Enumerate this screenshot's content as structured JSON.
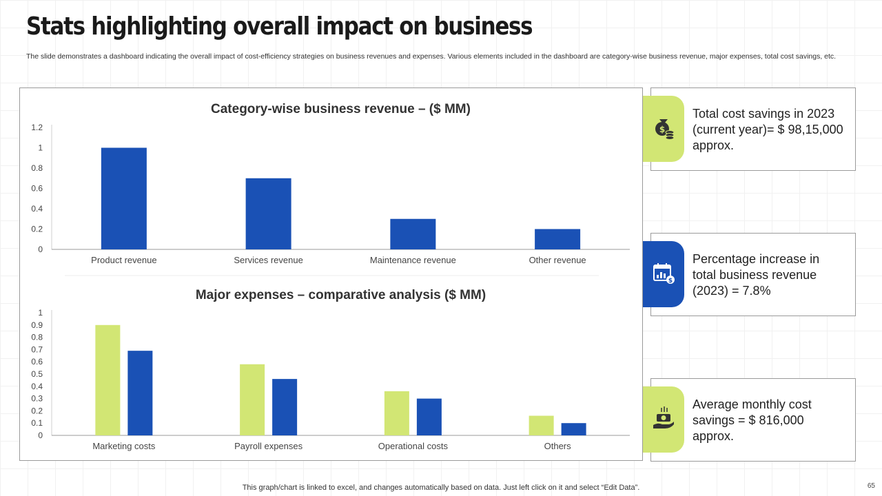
{
  "header": {
    "title": "Stats highlighting overall impact on business",
    "subtitle": "The slide demonstrates a dashboard indicating the overall impact of cost-efficiency strategies on business revenues and expenses. Various elements included in the dashboard are category-wise business revenue, major expenses, total cost savings, etc."
  },
  "chart_data": [
    {
      "type": "bar",
      "title": "Category-wise business revenue – ($ MM)",
      "categories": [
        "Product revenue",
        "Services revenue",
        "Maintenance revenue",
        "Other revenue"
      ],
      "values": [
        1,
        0.7,
        0.3,
        0.2
      ],
      "ylim": [
        0,
        1.2
      ],
      "yticks": [
        "0",
        "0.2",
        "0.4",
        "0.6",
        "0.8",
        "1",
        "1.2"
      ],
      "color": "#1a51b5",
      "grid": false,
      "legend": "none"
    },
    {
      "type": "bar",
      "title": "Major expenses – comparative analysis ($ MM)",
      "categories": [
        "Marketing costs",
        "Payroll expenses",
        "Operational costs",
        "Others"
      ],
      "series": [
        {
          "values": [
            0.9,
            0.58,
            0.36,
            0.16
          ],
          "color": "#d2e674"
        },
        {
          "values": [
            0.69,
            0.46,
            0.3,
            0.1
          ],
          "color": "#1a51b5"
        }
      ],
      "ylim": [
        0,
        1
      ],
      "yticks": [
        "0",
        "0.1",
        "0.2",
        "0.3",
        "0.4",
        "0.5",
        "0.6",
        "0.7",
        "0.8",
        "0.9",
        "1"
      ],
      "grid": false,
      "legend": "none"
    }
  ],
  "stats": [
    {
      "text": "Total cost savings in 2023 (current year)= $ 98,15,000 approx.",
      "icon": "money-bag-icon",
      "color": "#d2e674"
    },
    {
      "text": "Percentage increase in total business revenue (2023) = 7.8%",
      "icon": "calendar-chart-icon",
      "color": "#1a51b5"
    },
    {
      "text": "Average monthly cost savings = $ 816,000 approx.",
      "icon": "hand-money-icon",
      "color": "#d2e674"
    }
  ],
  "footer": {
    "note": "This graph/chart is linked to excel,  and changes automatically based on data. Just left click on it and select “Edit Data”.",
    "page_number": "65"
  }
}
